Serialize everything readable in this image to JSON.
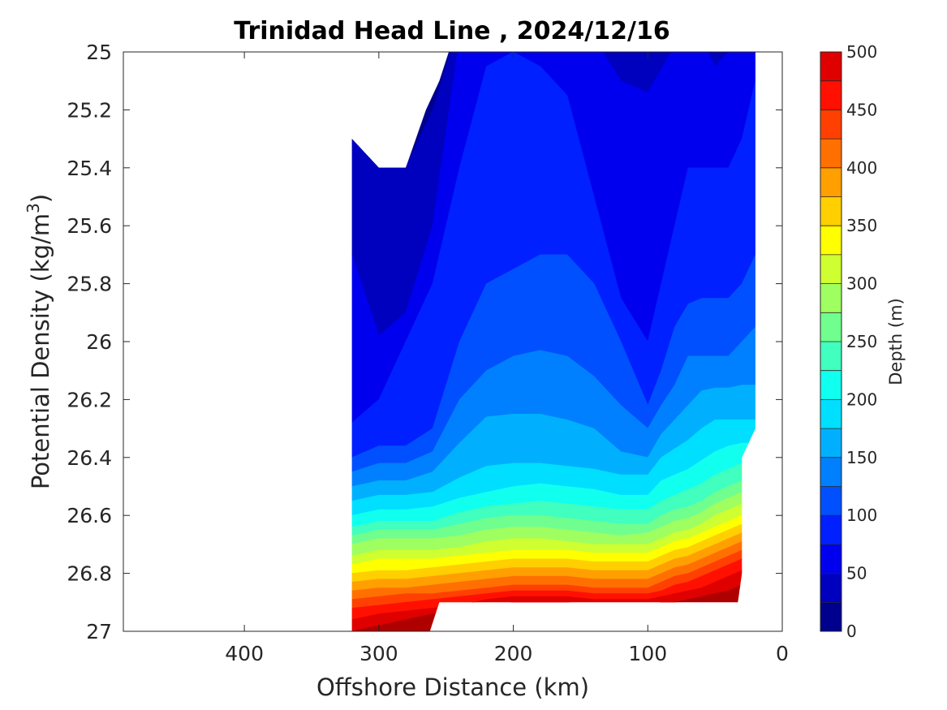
{
  "chart_data": {
    "type": "heatmap",
    "subtype": "filled-contour",
    "title": "Trinidad Head Line , 2024/12/16",
    "xlabel": "Offshore Distance (km)",
    "ylabel": {
      "prefix": "Potential Density (kg/m",
      "sup": "3",
      "suffix": ")"
    },
    "x_reversed": true,
    "xlim": [
      490,
      0
    ],
    "ylim": [
      25,
      27
    ],
    "y_reversed": true,
    "x_ticks": [
      400,
      300,
      200,
      100,
      0
    ],
    "x_tick_labels": [
      "400",
      "300",
      "200",
      "100",
      "0"
    ],
    "y_ticks": [
      25,
      25.2,
      25.4,
      25.6,
      25.8,
      26,
      26.2,
      26.4,
      26.6,
      26.8,
      27
    ],
    "y_tick_labels": [
      "25",
      "25.2",
      "25.4",
      "25.6",
      "25.8",
      "26",
      "26.2",
      "26.4",
      "26.6",
      "26.8",
      "27"
    ],
    "colorbar": {
      "label": "Depth (m)",
      "range": [
        0,
        500
      ],
      "ticks": [
        0,
        50,
        100,
        150,
        200,
        250,
        300,
        350,
        400,
        450,
        500
      ],
      "tick_labels": [
        "0",
        "50",
        "100",
        "150",
        "200",
        "250",
        "300",
        "350",
        "400",
        "450",
        "500"
      ],
      "levels": [
        0,
        25,
        50,
        75,
        100,
        125,
        150,
        175,
        200,
        225,
        250,
        275,
        300,
        325,
        350,
        375,
        400,
        425,
        450,
        475,
        500
      ],
      "colors": [
        "#00008f",
        "#0000bf",
        "#0000ef",
        "#0020ff",
        "#0050ff",
        "#0080ff",
        "#00b0ff",
        "#00dfff",
        "#10ffef",
        "#40ffbf",
        "#70ff8f",
        "#9fff60",
        "#cfff30",
        "#ffff00",
        "#ffcf00",
        "#ff9f00",
        "#ff7000",
        "#ff4000",
        "#ff1000",
        "#df0000",
        "#af0000"
      ]
    },
    "stations_x": [
      320,
      300,
      280,
      260,
      240,
      220,
      200,
      180,
      160,
      140,
      120,
      100,
      90,
      80,
      70,
      60,
      50,
      40,
      30,
      20
    ],
    "contours": [
      {
        "level": 25,
        "y": [
          25.3,
          25.4,
          25.4,
          25.2,
          24.9,
          24.9,
          24.9,
          24.9,
          24.9,
          24.9,
          24.9,
          24.9,
          24.9,
          24.9,
          24.9,
          24.9,
          24.9,
          24.9,
          24.9,
          24.9
        ]
      },
      {
        "level": 50,
        "y": [
          25.7,
          25.98,
          25.9,
          25.6,
          24.95,
          24.95,
          24.95,
          24.97,
          24.95,
          24.95,
          25.1,
          25.14,
          25.06,
          24.98,
          24.95,
          24.95,
          25.05,
          25.0,
          24.98,
          24.95
        ]
      },
      {
        "level": 75,
        "y": [
          26.28,
          26.2,
          26.0,
          25.8,
          25.4,
          25.05,
          25.0,
          25.05,
          25.15,
          25.5,
          25.85,
          26.0,
          25.8,
          25.6,
          25.4,
          25.4,
          25.4,
          25.4,
          25.3,
          25.1
        ]
      },
      {
        "level": 100,
        "y": [
          26.4,
          26.36,
          26.36,
          26.3,
          26.0,
          25.8,
          25.75,
          25.7,
          25.7,
          25.8,
          26.0,
          26.22,
          26.1,
          25.95,
          25.87,
          25.85,
          25.85,
          25.85,
          25.8,
          25.7
        ]
      },
      {
        "level": 125,
        "y": [
          26.45,
          26.42,
          26.42,
          26.38,
          26.2,
          26.1,
          26.05,
          26.03,
          26.05,
          26.12,
          26.22,
          26.3,
          26.22,
          26.15,
          26.05,
          26.05,
          26.05,
          26.05,
          26.0,
          25.95
        ]
      },
      {
        "level": 150,
        "y": [
          26.5,
          26.48,
          26.48,
          26.45,
          26.35,
          26.26,
          26.25,
          26.25,
          26.27,
          26.3,
          26.38,
          26.4,
          26.32,
          26.27,
          26.22,
          26.17,
          26.16,
          26.16,
          26.15,
          26.15
        ]
      },
      {
        "level": 175,
        "y": [
          26.55,
          26.53,
          26.53,
          26.52,
          26.47,
          26.43,
          26.42,
          26.42,
          26.43,
          26.44,
          26.46,
          26.46,
          26.4,
          26.37,
          26.34,
          26.3,
          26.27,
          26.27,
          26.27,
          26.27
        ]
      },
      {
        "level": 200,
        "y": [
          26.6,
          26.58,
          26.58,
          26.57,
          26.54,
          26.52,
          26.5,
          26.49,
          26.5,
          26.51,
          26.53,
          26.53,
          26.48,
          26.46,
          26.44,
          26.41,
          26.38,
          26.36,
          26.35,
          26.35
        ]
      },
      {
        "level": 225,
        "y": [
          26.64,
          26.62,
          26.62,
          26.62,
          26.59,
          26.57,
          26.56,
          26.55,
          26.56,
          26.57,
          26.58,
          26.58,
          26.55,
          26.53,
          26.51,
          26.49,
          26.46,
          26.44,
          26.42,
          26.42
        ]
      },
      {
        "level": 250,
        "y": [
          26.67,
          26.65,
          26.65,
          26.65,
          26.63,
          26.61,
          26.6,
          26.6,
          26.61,
          26.62,
          26.63,
          26.63,
          26.6,
          26.58,
          26.57,
          26.55,
          26.52,
          26.5,
          26.48,
          26.48
        ]
      },
      {
        "level": 275,
        "y": [
          26.7,
          26.68,
          26.68,
          26.68,
          26.67,
          26.65,
          26.64,
          26.64,
          26.65,
          26.66,
          26.67,
          26.66,
          26.64,
          26.62,
          26.61,
          26.59,
          26.56,
          26.54,
          26.52,
          26.52
        ]
      },
      {
        "level": 300,
        "y": [
          26.74,
          26.72,
          26.72,
          26.72,
          26.71,
          26.69,
          26.68,
          26.68,
          26.69,
          26.7,
          26.7,
          26.7,
          26.68,
          26.66,
          26.65,
          26.63,
          26.6,
          26.58,
          26.56,
          26.56
        ]
      },
      {
        "level": 325,
        "y": [
          26.77,
          26.75,
          26.75,
          26.75,
          26.74,
          26.73,
          26.72,
          26.72,
          26.72,
          26.73,
          26.73,
          26.73,
          26.71,
          26.69,
          26.68,
          26.66,
          26.64,
          26.62,
          26.6,
          26.6
        ]
      },
      {
        "level": 350,
        "y": [
          26.8,
          26.79,
          26.79,
          26.78,
          26.77,
          26.76,
          26.75,
          26.75,
          26.75,
          26.76,
          26.76,
          26.76,
          26.74,
          26.72,
          26.71,
          26.69,
          26.67,
          26.65,
          26.63,
          26.63
        ]
      },
      {
        "level": 375,
        "y": [
          26.83,
          26.82,
          26.82,
          26.81,
          26.8,
          26.79,
          26.78,
          26.78,
          26.78,
          26.79,
          26.79,
          26.79,
          26.77,
          26.75,
          26.74,
          26.72,
          26.7,
          26.68,
          26.66,
          26.66
        ]
      },
      {
        "level": 400,
        "y": [
          26.86,
          26.85,
          26.85,
          26.84,
          26.83,
          26.82,
          26.81,
          26.81,
          26.81,
          26.82,
          26.82,
          26.82,
          26.8,
          26.78,
          26.77,
          26.75,
          26.73,
          26.71,
          26.69,
          26.69
        ]
      },
      {
        "level": 425,
        "y": [
          26.89,
          26.88,
          26.87,
          26.87,
          26.86,
          26.85,
          26.84,
          26.84,
          26.84,
          26.85,
          26.85,
          26.85,
          26.83,
          26.81,
          26.8,
          26.78,
          26.76,
          26.74,
          26.72,
          26.72
        ]
      },
      {
        "level": 450,
        "y": [
          26.92,
          26.91,
          26.9,
          26.89,
          26.88,
          26.87,
          26.86,
          26.86,
          26.86,
          26.87,
          26.87,
          26.87,
          26.86,
          26.84,
          26.83,
          26.81,
          26.79,
          26.77,
          26.75,
          26.75
        ]
      },
      {
        "level": 475,
        "y": [
          26.96,
          26.94,
          26.93,
          26.92,
          26.91,
          26.89,
          26.88,
          26.88,
          26.88,
          26.89,
          26.89,
          26.89,
          26.88,
          26.87,
          26.86,
          26.85,
          26.83,
          26.81,
          26.79,
          26.79
        ]
      },
      {
        "level": 500,
        "y": [
          27.0,
          26.98,
          26.96,
          26.94,
          26.92,
          26.91,
          26.9,
          26.9,
          26.9,
          26.91,
          26.91,
          26.91,
          26.9,
          26.9,
          26.89,
          26.88,
          26.87,
          26.86,
          26.84,
          26.84
        ]
      }
    ],
    "data_extent": {
      "x": [
        320,
        300,
        280,
        265,
        255,
        248,
        20,
        20,
        30,
        30,
        33,
        40,
        255,
        262,
        320
      ],
      "y": [
        25.3,
        25.4,
        25.4,
        25.2,
        25.1,
        25.0,
        25.0,
        26.3,
        26.4,
        26.8,
        26.9,
        26.9,
        26.9,
        27.0,
        27.0
      ]
    }
  }
}
